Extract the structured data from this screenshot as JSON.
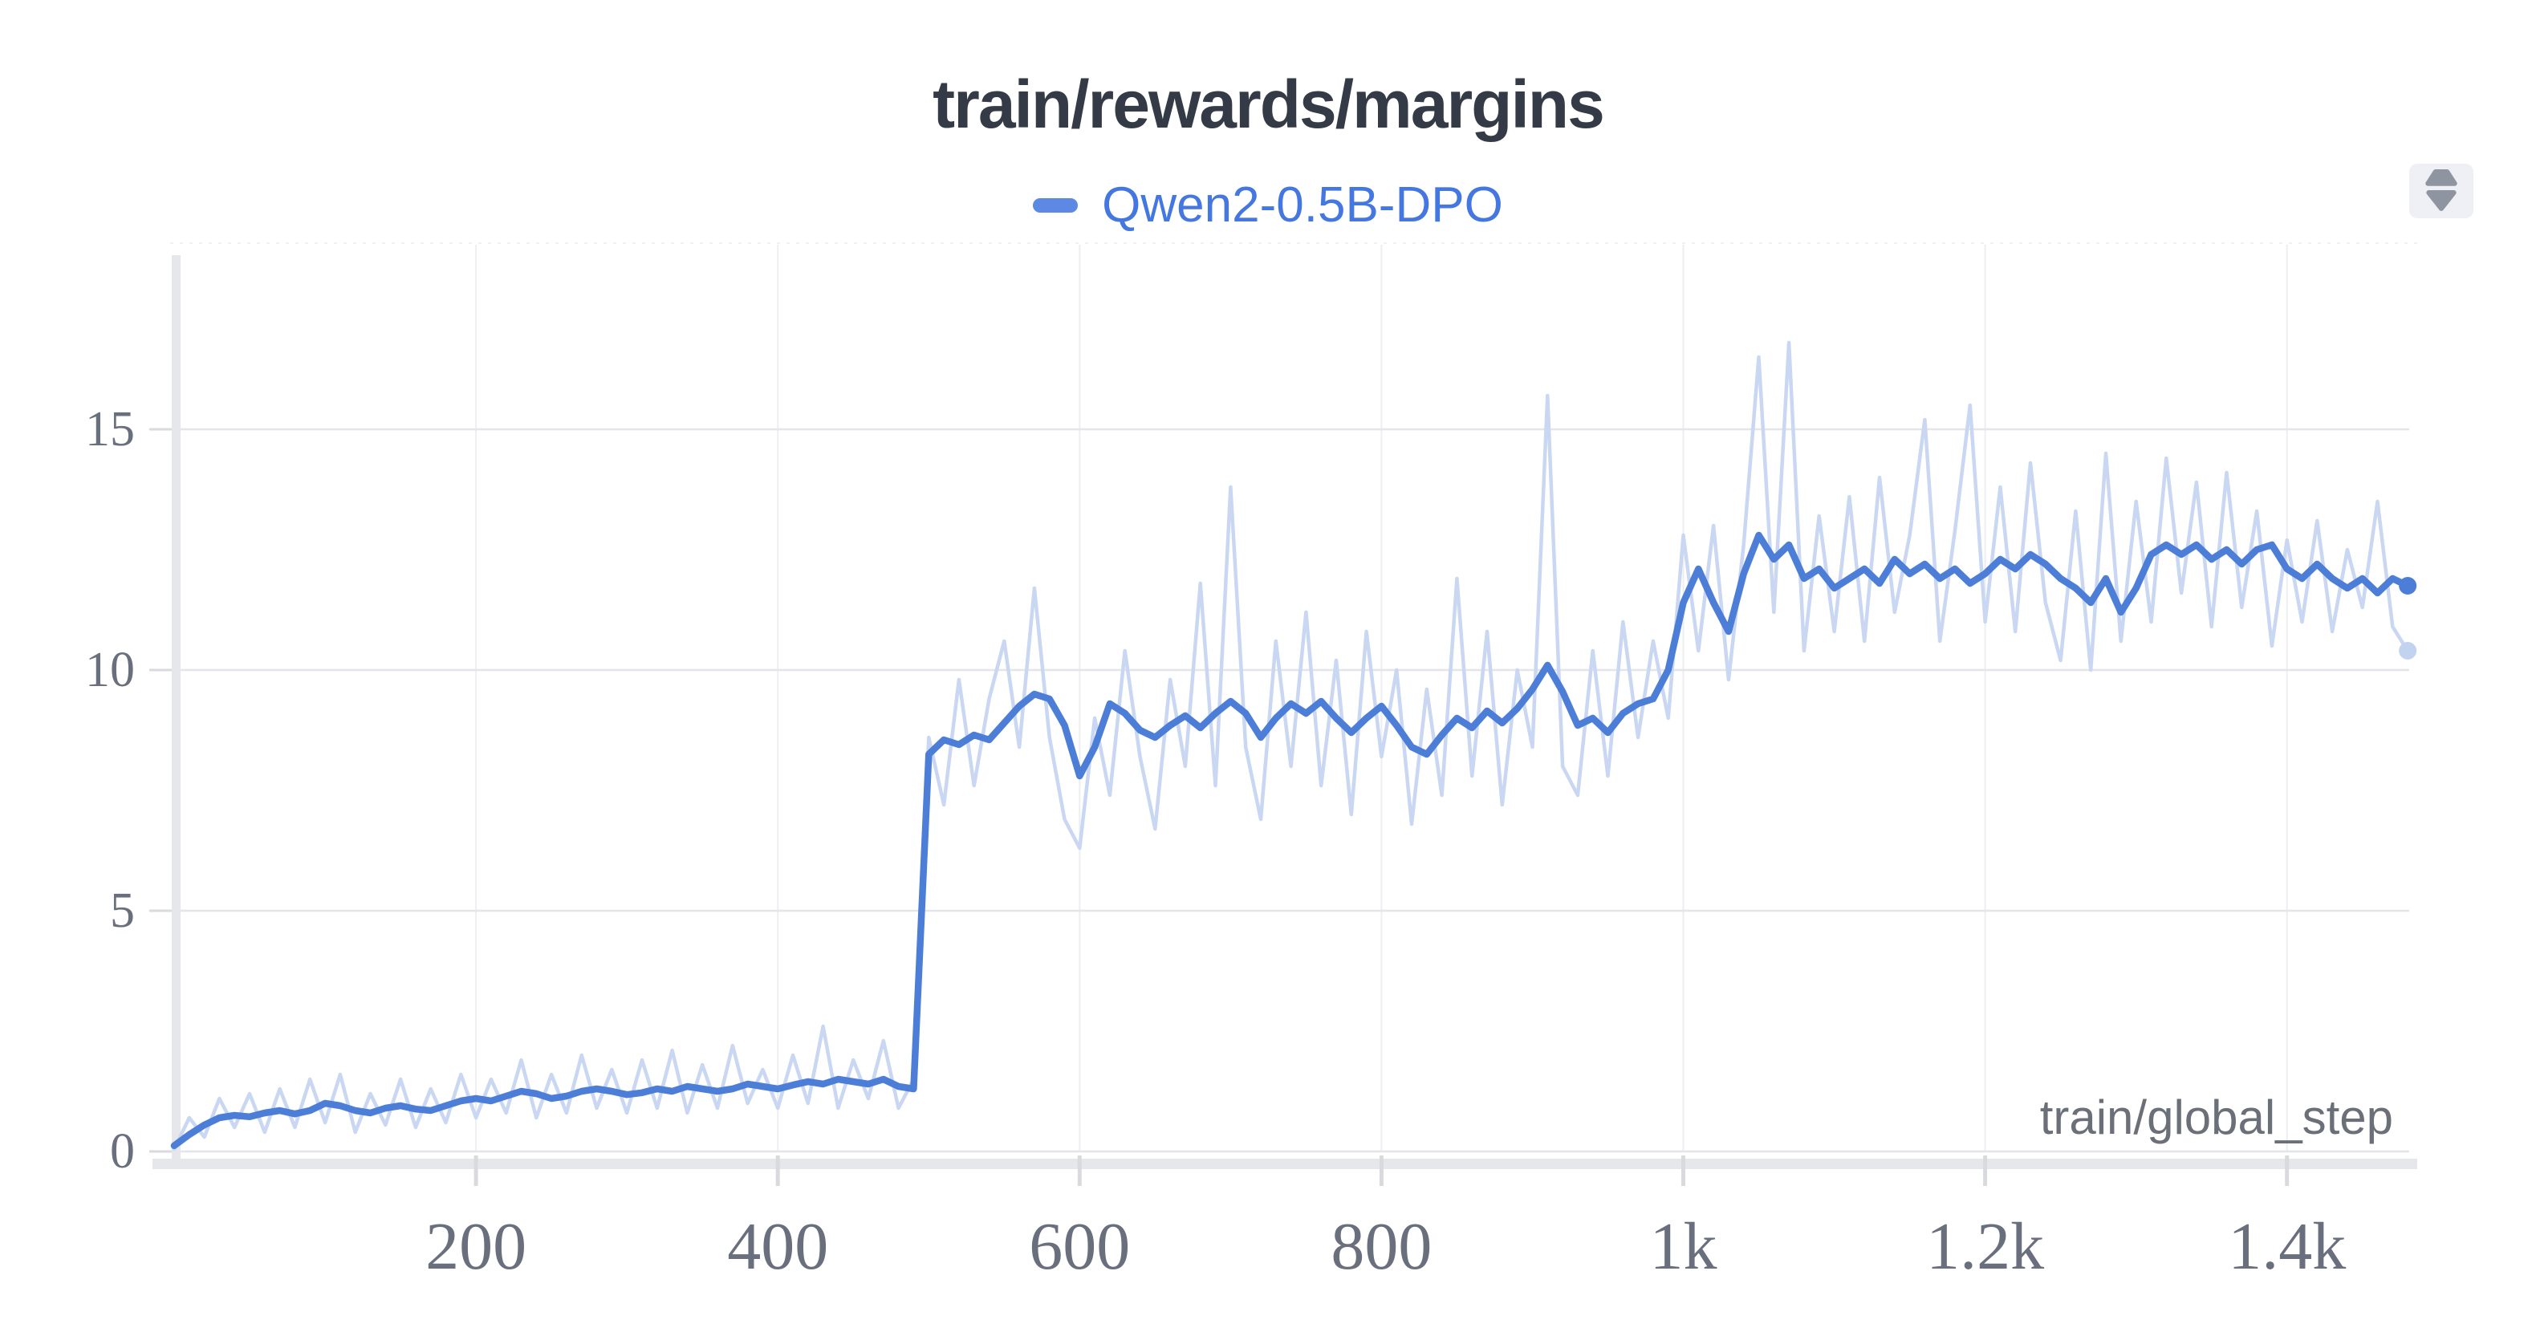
{
  "header": {
    "title": "train/rewards/margins",
    "title_color": "#343b46",
    "legend": {
      "label": "Qwen2-0.5B-DPO",
      "dash_color": "#5d89e4",
      "text_color": "#4477e0"
    },
    "icons": {
      "panel_action": "expand-collapse-icon",
      "panel_action_color": "#8e94a0"
    }
  },
  "chart_data": {
    "type": "line",
    "title": "train/rewards/margins",
    "xlabel": "train/global_step",
    "ylabel": "",
    "legend": [
      {
        "name": "Qwen2-0.5B-DPO",
        "color": "#4c7ed8"
      }
    ],
    "legend_position": "top",
    "grid": true,
    "xlim": [
      0,
      1480
    ],
    "ylim": [
      0,
      18.8
    ],
    "x_ticks": [
      {
        "value": 200,
        "label": "200"
      },
      {
        "value": 400,
        "label": "400"
      },
      {
        "value": 600,
        "label": "600"
      },
      {
        "value": 800,
        "label": "800"
      },
      {
        "value": 1000,
        "label": "1k"
      },
      {
        "value": 1200,
        "label": "1.2k"
      },
      {
        "value": 1400,
        "label": "1.4k"
      }
    ],
    "y_ticks": [
      {
        "value": 0,
        "label": "0"
      },
      {
        "value": 5,
        "label": "5"
      },
      {
        "value": 10,
        "label": "10"
      },
      {
        "value": 15,
        "label": "15"
      }
    ],
    "style": {
      "h_grid_color": "#e4e5e9",
      "v_grid_color": "#edeef1",
      "axis_band_color": "#e6e7eb",
      "tick_color": "#d8dade",
      "top_border_color": "#eff0f3",
      "tick_label_color": "#6a6f7e",
      "xlabel_color": "#6b7078"
    },
    "steps": [
      0,
      10,
      20,
      30,
      40,
      50,
      60,
      70,
      80,
      90,
      100,
      110,
      120,
      130,
      140,
      150,
      160,
      170,
      180,
      190,
      200,
      210,
      220,
      230,
      240,
      250,
      260,
      270,
      280,
      290,
      300,
      310,
      320,
      330,
      340,
      350,
      360,
      370,
      380,
      390,
      400,
      410,
      420,
      430,
      440,
      450,
      460,
      470,
      480,
      490,
      500,
      510,
      520,
      530,
      540,
      550,
      560,
      570,
      580,
      590,
      600,
      610,
      620,
      630,
      640,
      650,
      660,
      670,
      680,
      690,
      700,
      710,
      720,
      730,
      740,
      750,
      760,
      770,
      780,
      790,
      800,
      810,
      820,
      830,
      840,
      850,
      860,
      870,
      880,
      890,
      900,
      910,
      920,
      930,
      940,
      950,
      960,
      970,
      980,
      990,
      1000,
      1010,
      1020,
      1030,
      1040,
      1050,
      1060,
      1070,
      1080,
      1090,
      1100,
      1110,
      1120,
      1130,
      1140,
      1150,
      1160,
      1170,
      1180,
      1190,
      1200,
      1210,
      1220,
      1230,
      1240,
      1250,
      1260,
      1270,
      1280,
      1290,
      1300,
      1310,
      1320,
      1330,
      1340,
      1350,
      1360,
      1370,
      1380,
      1390,
      1400,
      1410,
      1420,
      1430,
      1440,
      1450,
      1460,
      1470,
      1480
    ],
    "series": [
      {
        "name": "Qwen2-0.5B-DPO (unsmoothed)",
        "role": "raw",
        "color": "#c9d7f2",
        "line_width": 4.5,
        "end_marker": true,
        "end_marker_color": "#c2d3f0",
        "values": [
          0.05,
          0.7,
          0.3,
          1.1,
          0.5,
          1.2,
          0.4,
          1.3,
          0.5,
          1.5,
          0.6,
          1.6,
          0.4,
          1.2,
          0.55,
          1.5,
          0.5,
          1.3,
          0.6,
          1.6,
          0.7,
          1.5,
          0.8,
          1.9,
          0.7,
          1.6,
          0.8,
          2.0,
          0.9,
          1.7,
          0.8,
          1.9,
          0.9,
          2.1,
          0.8,
          1.8,
          0.9,
          2.2,
          1.0,
          1.7,
          0.9,
          2.0,
          1.0,
          2.6,
          0.9,
          1.9,
          1.1,
          2.3,
          0.9,
          1.5,
          8.6,
          7.2,
          9.8,
          7.6,
          9.4,
          10.6,
          8.4,
          11.7,
          8.6,
          6.9,
          6.3,
          9.0,
          7.4,
          10.4,
          8.2,
          6.7,
          9.8,
          8.0,
          11.8,
          7.6,
          13.8,
          8.4,
          6.9,
          10.6,
          8.0,
          11.2,
          7.6,
          10.2,
          7.0,
          10.8,
          8.2,
          10.0,
          6.8,
          9.6,
          7.4,
          11.9,
          7.8,
          10.8,
          7.2,
          10.0,
          8.4,
          15.7,
          8.0,
          7.4,
          10.4,
          7.8,
          11.0,
          8.6,
          10.6,
          9.0,
          12.8,
          10.4,
          13.0,
          9.8,
          12.6,
          16.5,
          11.2,
          16.8,
          10.4,
          13.2,
          10.8,
          13.6,
          10.6,
          14.0,
          11.2,
          12.8,
          15.2,
          10.6,
          12.9,
          15.5,
          11.0,
          13.8,
          10.8,
          14.3,
          11.4,
          10.2,
          13.3,
          10.0,
          14.5,
          10.6,
          13.5,
          11.0,
          14.4,
          11.6,
          13.9,
          10.9,
          14.1,
          11.3,
          13.3,
          10.5,
          12.7,
          11.0,
          13.1,
          10.8,
          12.5,
          11.3,
          13.5,
          10.9,
          10.4
        ]
      },
      {
        "name": "Qwen2-0.5B-DPO",
        "role": "smoothed",
        "color": "#4c7ed8",
        "line_width": 8.5,
        "end_marker": true,
        "end_marker_color": "#4c7ed8",
        "values": [
          0.12,
          0.35,
          0.55,
          0.7,
          0.75,
          0.72,
          0.8,
          0.85,
          0.78,
          0.85,
          1.0,
          0.95,
          0.85,
          0.8,
          0.9,
          0.95,
          0.88,
          0.85,
          0.95,
          1.05,
          1.1,
          1.05,
          1.15,
          1.25,
          1.2,
          1.1,
          1.15,
          1.25,
          1.3,
          1.25,
          1.18,
          1.22,
          1.3,
          1.25,
          1.35,
          1.3,
          1.25,
          1.3,
          1.4,
          1.35,
          1.3,
          1.38,
          1.45,
          1.4,
          1.5,
          1.45,
          1.4,
          1.5,
          1.35,
          1.3,
          8.25,
          8.55,
          8.45,
          8.65,
          8.55,
          8.9,
          9.25,
          9.5,
          9.4,
          8.85,
          7.8,
          8.4,
          9.3,
          9.1,
          8.75,
          8.6,
          8.85,
          9.05,
          8.8,
          9.1,
          9.35,
          9.1,
          8.6,
          9.0,
          9.3,
          9.1,
          9.35,
          9.0,
          8.7,
          9.0,
          9.25,
          8.85,
          8.4,
          8.25,
          8.65,
          9.0,
          8.8,
          9.15,
          8.9,
          9.2,
          9.6,
          10.1,
          9.55,
          8.85,
          9.0,
          8.7,
          9.1,
          9.3,
          9.4,
          10.0,
          11.4,
          12.1,
          11.4,
          10.8,
          12.0,
          12.8,
          12.3,
          12.6,
          11.9,
          12.1,
          11.7,
          11.9,
          12.1,
          11.8,
          12.3,
          12.0,
          12.2,
          11.9,
          12.1,
          11.8,
          12.0,
          12.3,
          12.1,
          12.4,
          12.2,
          11.9,
          11.7,
          11.4,
          11.9,
          11.2,
          11.7,
          12.4,
          12.6,
          12.4,
          12.6,
          12.3,
          12.5,
          12.2,
          12.5,
          12.6,
          12.1,
          11.9,
          12.2,
          11.9,
          11.7,
          11.9,
          11.6,
          11.9,
          11.75
        ]
      }
    ]
  }
}
